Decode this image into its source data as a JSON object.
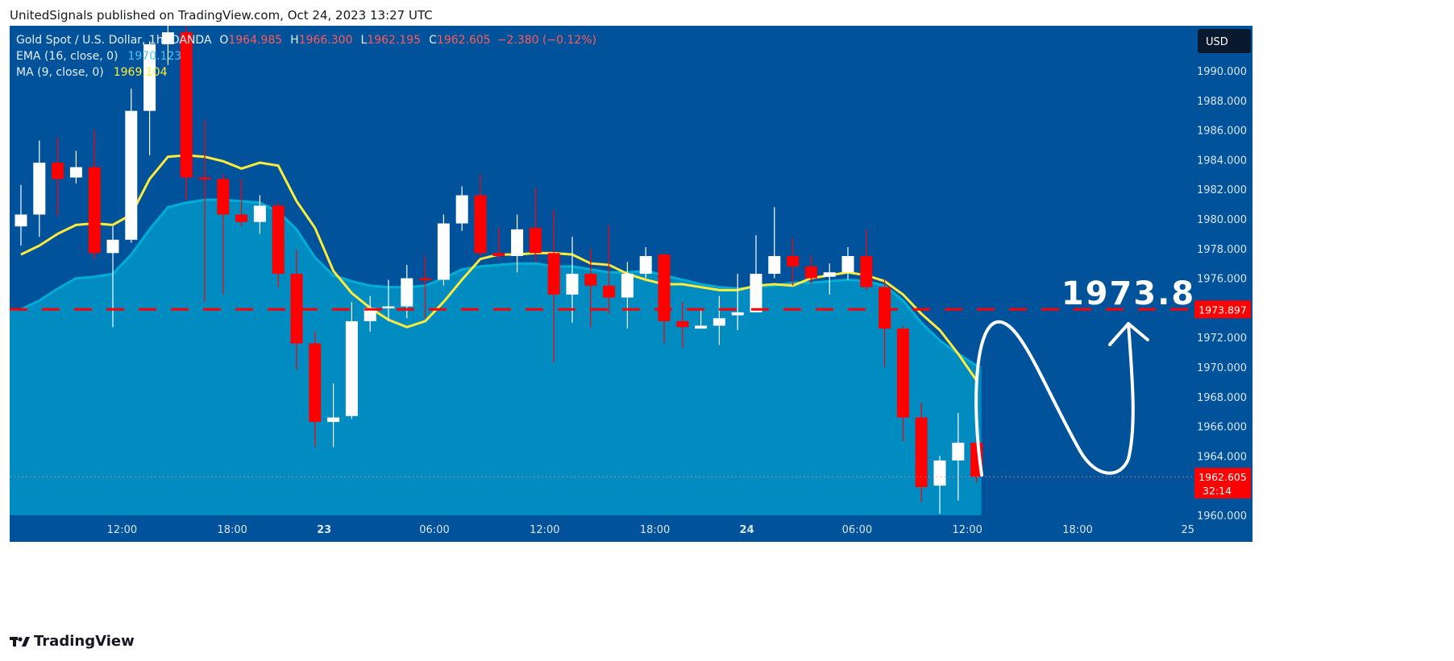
{
  "header": {
    "publisher_line": "UnitedSignals published on TradingView.com, Oct 24, 2023 13:27 UTC"
  },
  "footer": {
    "brand": "TradingView",
    "logo_icon": "tradingview-logo-icon"
  },
  "legend": {
    "symbol": "Gold Spot / U.S. Dollar, 1h, OANDA",
    "open_label": "O",
    "open": "1964.985",
    "high_label": "H",
    "high": "1966.300",
    "low_label": "L",
    "low": "1962.195",
    "close_label": "C",
    "close": "1962.605",
    "change": "−2.380 (−0.12%)",
    "ema_label": "EMA (16, close, 0)",
    "ema_value": "1970.123",
    "ma_label": "MA (9, close, 0)",
    "ma_value": "1969.104"
  },
  "currency_button": "USD",
  "price_labels": {
    "level": "1973.897",
    "current": "1962.605",
    "countdown": "32:14"
  },
  "annotation_text": "1973.8",
  "colors": {
    "background": "#00539b",
    "area": "#0096c7",
    "up": "#ffffff",
    "down": "#ff0000",
    "ema": "#00b4d8",
    "ma": "#ffeb3b",
    "level": "#ff0000"
  },
  "chart_data": {
    "type": "candlestick",
    "interval": "1h",
    "ylim": [
      1960,
      1992
    ],
    "yticks": [
      "1960.000",
      "1962.000",
      "1964.000",
      "1966.000",
      "1968.000",
      "1970.000",
      "1972.000",
      "1974.000",
      "1976.000",
      "1978.000",
      "1980.000",
      "1982.000",
      "1984.000",
      "1986.000",
      "1988.000",
      "1990.000"
    ],
    "xtick_labels": [
      {
        "label": "12:00",
        "i": 5.5
      },
      {
        "label": "18:00",
        "i": 11.5
      },
      {
        "label": "23",
        "i": 16.5
      },
      {
        "label": "06:00",
        "i": 22.5
      },
      {
        "label": "12:00",
        "i": 28.5
      },
      {
        "label": "18:00",
        "i": 34.5
      },
      {
        "label": "24",
        "i": 39.5
      },
      {
        "label": "06:00",
        "i": 45.5
      },
      {
        "label": "12:00",
        "i": 51.5
      },
      {
        "label": "18:00",
        "i": 57.5
      },
      {
        "label": "25",
        "i": 63.5
      }
    ],
    "candles": [
      {
        "o": 1979.5,
        "h": 1982.3,
        "l": 1978.2,
        "c": 1980.3
      },
      {
        "o": 1980.3,
        "h": 1985.3,
        "l": 1978.8,
        "c": 1983.8
      },
      {
        "o": 1983.8,
        "h": 1985.5,
        "l": 1980.2,
        "c": 1982.7
      },
      {
        "o": 1982.8,
        "h": 1984.6,
        "l": 1982.4,
        "c": 1983.5
      },
      {
        "o": 1983.5,
        "h": 1986.0,
        "l": 1977.3,
        "c": 1977.7
      },
      {
        "o": 1977.7,
        "h": 1979.5,
        "l": 1972.7,
        "c": 1978.6
      },
      {
        "o": 1978.6,
        "h": 1988.8,
        "l": 1978.4,
        "c": 1987.3
      },
      {
        "o": 1987.3,
        "h": 1992.0,
        "l": 1984.3,
        "c": 1991.8
      },
      {
        "o": 1991.8,
        "h": 1994.0,
        "l": 1990.4,
        "c": 1992.6
      },
      {
        "o": 1992.6,
        "h": 1993.0,
        "l": 1981.3,
        "c": 1982.8
      },
      {
        "o": 1982.8,
        "h": 1986.7,
        "l": 1974.4,
        "c": 1982.7
      },
      {
        "o": 1982.7,
        "h": 1983.0,
        "l": 1974.9,
        "c": 1980.3
      },
      {
        "o": 1980.3,
        "h": 1982.7,
        "l": 1979.5,
        "c": 1979.8
      },
      {
        "o": 1979.8,
        "h": 1981.6,
        "l": 1979.0,
        "c": 1980.9
      },
      {
        "o": 1980.9,
        "h": 1981.1,
        "l": 1975.4,
        "c": 1976.3
      },
      {
        "o": 1976.3,
        "h": 1977.9,
        "l": 1969.8,
        "c": 1971.6
      },
      {
        "o": 1971.6,
        "h": 1972.4,
        "l": 1964.6,
        "c": 1966.3
      },
      {
        "o": 1966.3,
        "h": 1968.9,
        "l": 1964.6,
        "c": 1966.6
      },
      {
        "o": 1966.7,
        "h": 1974.4,
        "l": 1966.5,
        "c": 1973.1
      },
      {
        "o": 1973.1,
        "h": 1974.8,
        "l": 1972.4,
        "c": 1974.0
      },
      {
        "o": 1974.0,
        "h": 1975.9,
        "l": 1973.1,
        "c": 1974.1
      },
      {
        "o": 1974.1,
        "h": 1976.9,
        "l": 1973.3,
        "c": 1976.0
      },
      {
        "o": 1976.0,
        "h": 1977.5,
        "l": 1973.3,
        "c": 1975.9
      },
      {
        "o": 1975.9,
        "h": 1980.3,
        "l": 1975.5,
        "c": 1979.7
      },
      {
        "o": 1979.7,
        "h": 1982.2,
        "l": 1979.2,
        "c": 1981.6
      },
      {
        "o": 1981.6,
        "h": 1983.0,
        "l": 1977.5,
        "c": 1977.7
      },
      {
        "o": 1977.7,
        "h": 1979.4,
        "l": 1977.3,
        "c": 1977.5
      },
      {
        "o": 1977.5,
        "h": 1980.3,
        "l": 1976.4,
        "c": 1979.3
      },
      {
        "o": 1979.4,
        "h": 1982.1,
        "l": 1977.1,
        "c": 1977.7
      },
      {
        "o": 1977.7,
        "h": 1980.6,
        "l": 1970.3,
        "c": 1974.9
      },
      {
        "o": 1974.9,
        "h": 1978.8,
        "l": 1973.0,
        "c": 1976.3
      },
      {
        "o": 1976.3,
        "h": 1978.0,
        "l": 1972.7,
        "c": 1975.5
      },
      {
        "o": 1975.5,
        "h": 1979.6,
        "l": 1973.6,
        "c": 1974.7
      },
      {
        "o": 1974.7,
        "h": 1977.1,
        "l": 1972.6,
        "c": 1976.3
      },
      {
        "o": 1976.3,
        "h": 1978.1,
        "l": 1976.0,
        "c": 1977.5
      },
      {
        "o": 1977.6,
        "h": 1977.7,
        "l": 1971.6,
        "c": 1973.1
      },
      {
        "o": 1973.1,
        "h": 1974.4,
        "l": 1971.3,
        "c": 1972.7
      },
      {
        "o": 1972.6,
        "h": 1973.9,
        "l": 1972.6,
        "c": 1972.8
      },
      {
        "o": 1972.8,
        "h": 1974.8,
        "l": 1971.5,
        "c": 1973.3
      },
      {
        "o": 1973.5,
        "h": 1976.3,
        "l": 1972.5,
        "c": 1973.7
      },
      {
        "o": 1973.7,
        "h": 1978.9,
        "l": 1973.7,
        "c": 1976.3
      },
      {
        "o": 1976.3,
        "h": 1980.8,
        "l": 1976.0,
        "c": 1977.5
      },
      {
        "o": 1977.5,
        "h": 1978.7,
        "l": 1975.5,
        "c": 1976.8
      },
      {
        "o": 1976.8,
        "h": 1977.5,
        "l": 1975.6,
        "c": 1976.0
      },
      {
        "o": 1976.1,
        "h": 1977.0,
        "l": 1974.9,
        "c": 1976.4
      },
      {
        "o": 1976.4,
        "h": 1978.1,
        "l": 1975.9,
        "c": 1977.5
      },
      {
        "o": 1977.5,
        "h": 1979.3,
        "l": 1975.2,
        "c": 1975.4
      },
      {
        "o": 1975.4,
        "h": 1975.9,
        "l": 1970.0,
        "c": 1972.6
      },
      {
        "o": 1972.6,
        "h": 1972.8,
        "l": 1965.0,
        "c": 1966.6
      },
      {
        "o": 1966.6,
        "h": 1967.6,
        "l": 1960.9,
        "c": 1961.9
      },
      {
        "o": 1962.0,
        "h": 1964.0,
        "l": 1960.1,
        "c": 1963.7
      },
      {
        "o": 1963.7,
        "h": 1966.9,
        "l": 1961.0,
        "c": 1964.9
      },
      {
        "o": 1964.9,
        "h": 1966.3,
        "l": 1962.2,
        "c": 1962.6
      }
    ],
    "ema": [
      1973.9,
      1974.5,
      1975.3,
      1976.0,
      1976.1,
      1976.3,
      1977.6,
      1979.3,
      1980.8,
      1981.1,
      1981.3,
      1981.3,
      1981.2,
      1981.1,
      1980.5,
      1979.3,
      1977.4,
      1976.2,
      1975.8,
      1975.5,
      1975.4,
      1975.4,
      1975.5,
      1976.0,
      1976.6,
      1976.8,
      1976.9,
      1977.0,
      1977.0,
      1976.8,
      1976.8,
      1976.6,
      1976.4,
      1976.4,
      1976.5,
      1976.2,
      1975.9,
      1975.6,
      1975.4,
      1975.3,
      1975.4,
      1975.5,
      1975.7,
      1975.7,
      1975.8,
      1975.9,
      1975.8,
      1975.5,
      1974.5,
      1973.0,
      1971.8,
      1970.9,
      1970.1
    ],
    "ma": [
      1977.6,
      1978.2,
      1979.0,
      1979.6,
      1979.7,
      1979.6,
      1980.3,
      1982.7,
      1984.2,
      1984.3,
      1984.2,
      1983.9,
      1983.4,
      1983.8,
      1983.6,
      1981.2,
      1979.4,
      1976.5,
      1975.0,
      1974.0,
      1973.2,
      1972.7,
      1973.1,
      1974.4,
      1975.9,
      1977.3,
      1977.6,
      1977.6,
      1977.7,
      1977.7,
      1977.6,
      1977.0,
      1976.9,
      1976.3,
      1975.9,
      1975.6,
      1975.6,
      1975.4,
      1975.2,
      1975.2,
      1975.5,
      1975.6,
      1975.5,
      1976.0,
      1976.2,
      1976.4,
      1976.2,
      1975.8,
      1974.9,
      1973.6,
      1972.5,
      1970.9,
      1969.1
    ],
    "horizontal_line": {
      "value": 1973.897,
      "style": "dashed",
      "color": "#ff0000"
    },
    "current_price_line": {
      "value": 1962.605,
      "style": "dotted"
    },
    "annotation": {
      "text": "1973.8",
      "kind": "hand-drawn projection arrow"
    }
  }
}
